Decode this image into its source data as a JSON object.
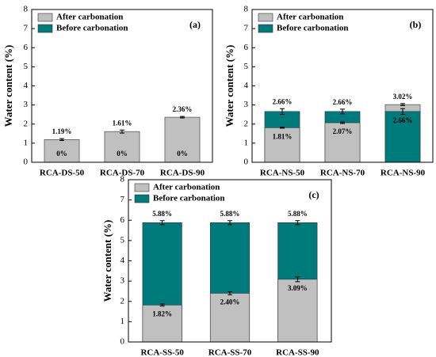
{
  "chart_data": [
    {
      "type": "bar",
      "panel_label": "(a)",
      "ylabel": "Water content (%)",
      "categories": [
        "RCA-DS-50",
        "RCA-DS-70",
        "RCA-DS-90"
      ],
      "series": [
        {
          "name": "After carbonation",
          "color": "#c0c0c0",
          "values": [
            1.19,
            1.61,
            2.36
          ],
          "errors": [
            0.05,
            0.08,
            0.04
          ],
          "value_labels": [
            "1.19%",
            "1.61%",
            "2.36%"
          ]
        },
        {
          "name": "Before carbonation",
          "color": "#007b7b",
          "values": [
            0,
            0,
            0
          ],
          "errors": [
            0,
            0,
            0
          ],
          "value_labels": [
            "0%",
            "0%",
            "0%"
          ]
        }
      ],
      "ylim": [
        0,
        8
      ],
      "yticks": [
        0,
        1,
        2,
        3,
        4,
        5,
        6,
        7,
        8
      ],
      "legend": "upper left"
    },
    {
      "type": "bar",
      "panel_label": "(b)",
      "ylabel": "Water content (%)",
      "categories": [
        "RCA-NS-50",
        "RCA-NS-70",
        "RCA-NS-90"
      ],
      "series": [
        {
          "name": "After carbonation",
          "color": "#c0c0c0",
          "values": [
            1.81,
            2.07,
            3.02
          ],
          "errors": [
            0.03,
            0.04,
            0.05
          ],
          "value_labels": [
            "1.81%",
            "2.07%",
            "3.02%"
          ]
        },
        {
          "name": "Before carbonation",
          "color": "#007b7b",
          "values": [
            2.66,
            2.66,
            2.66
          ],
          "errors": [
            0.15,
            0.12,
            0.15
          ],
          "value_labels": [
            "2.66%",
            "2.66%",
            "2.66%"
          ]
        }
      ],
      "ylim": [
        0,
        8
      ],
      "yticks": [
        0,
        1,
        2,
        3,
        4,
        5,
        6,
        7,
        8
      ],
      "legend": "upper left"
    },
    {
      "type": "bar",
      "panel_label": "(c)",
      "ylabel": "Water content (%)",
      "categories": [
        "RCA-SS-50",
        "RCA-SS-70",
        "RCA-SS-90"
      ],
      "series": [
        {
          "name": "After carbonation",
          "color": "#c0c0c0",
          "values": [
            1.82,
            2.4,
            3.09
          ],
          "errors": [
            0.05,
            0.08,
            0.12
          ],
          "value_labels": [
            "1.82%",
            "2.40%",
            "3.09%"
          ]
        },
        {
          "name": "Before carbonation",
          "color": "#007b7b",
          "values": [
            5.88,
            5.88,
            5.88
          ],
          "errors": [
            0.1,
            0.1,
            0.1
          ],
          "value_labels": [
            "5.88%",
            "5.88%",
            "5.88%"
          ]
        }
      ],
      "ylim": [
        0,
        8
      ],
      "yticks": [
        0,
        1,
        2,
        3,
        4,
        5,
        6,
        7,
        8
      ],
      "legend": "upper left"
    }
  ]
}
